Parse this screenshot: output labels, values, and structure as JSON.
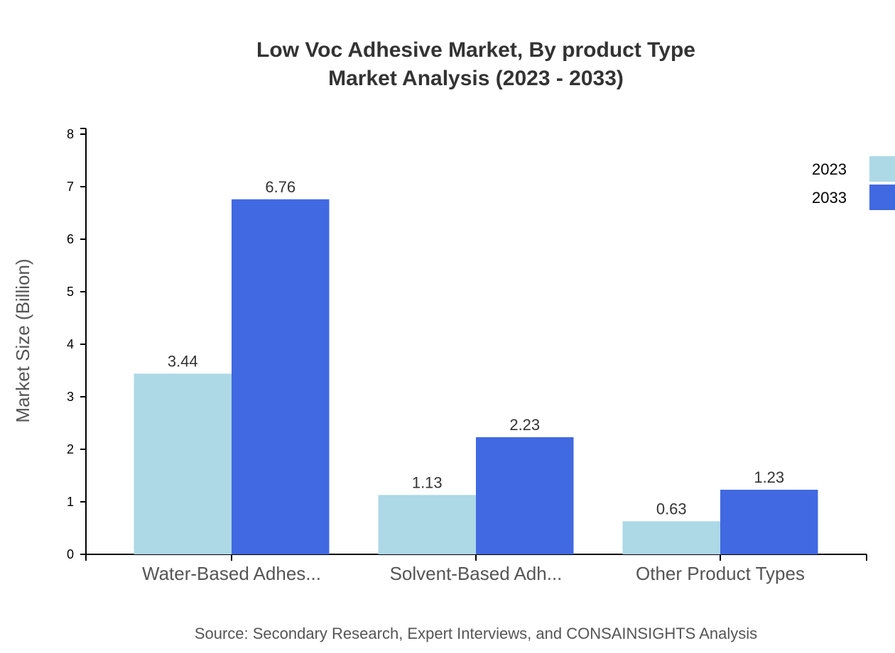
{
  "chart_data": {
    "type": "bar",
    "title": "Low Voc Adhesive Market, By product Type",
    "subtitle": "Market Analysis (2023 - 2033)",
    "xlabel": "",
    "ylabel": "Market Size (Billion)",
    "ylim": [
      0,
      8
    ],
    "yticks": [
      "0",
      "1",
      "2",
      "3",
      "4",
      "5",
      "6",
      "7",
      "8"
    ],
    "categories": [
      "Water-Based Adhes...",
      "Solvent-Based Adh...",
      "Other Product Types"
    ],
    "series": [
      {
        "name": "2023",
        "color": "#add8e6",
        "values": [
          3.44,
          1.13,
          0.63
        ],
        "labels": [
          "3.44",
          "1.13",
          "0.63"
        ]
      },
      {
        "name": "2033",
        "color": "#4169e1",
        "values": [
          6.76,
          2.23,
          1.23
        ],
        "labels": [
          "6.76",
          "2.23",
          "1.23"
        ]
      }
    ],
    "legend": "top-right",
    "grid": false,
    "source": "Source: Secondary Research, Expert Interviews, and CONSAINSIGHTS Analysis"
  }
}
